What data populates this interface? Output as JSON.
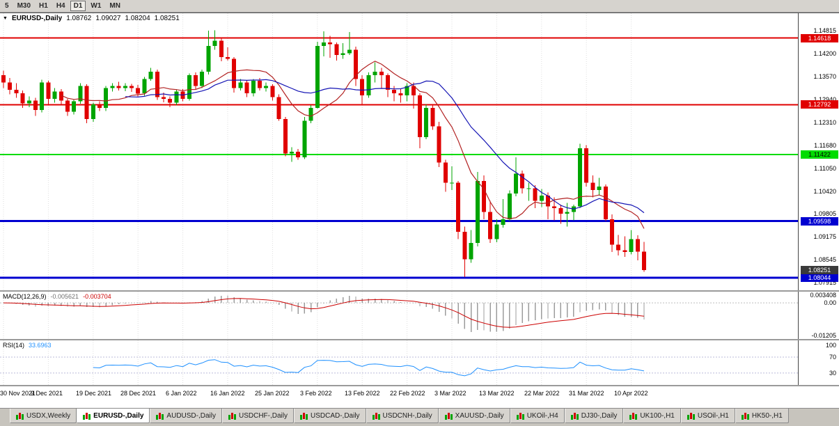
{
  "toolbar": {
    "timeframes": [
      {
        "label": "5",
        "active": false
      },
      {
        "label": "M30",
        "active": false
      },
      {
        "label": "H1",
        "active": false
      },
      {
        "label": "H4",
        "active": false
      },
      {
        "label": "D1",
        "active": true
      },
      {
        "label": "W1",
        "active": false
      },
      {
        "label": "MN",
        "active": false
      }
    ]
  },
  "chart": {
    "header": {
      "collapse_icon": "▼",
      "symbol": "EURUSD-,Daily",
      "open": "1.08762",
      "high": "1.09027",
      "low": "1.08204",
      "close": "1.08251"
    }
  },
  "chart_data": {
    "type": "candlestick",
    "symbol": "EURUSD-",
    "timeframe": "Daily",
    "price_range": {
      "top": 1.153,
      "bottom": 1.077
    },
    "colors": {
      "bull": "#00A400",
      "bear": "#E00000",
      "background": "#FFFFFF",
      "grid": "#DEDEDE"
    },
    "price_axis_ticks": [
      "1.14815",
      "1.14200",
      "1.13570",
      "1.12940",
      "1.12310",
      "1.11680",
      "1.11050",
      "1.10420",
      "1.09805",
      "1.09175",
      "1.08545",
      "1.07915"
    ],
    "hlines": [
      {
        "price": 1.14618,
        "label": "1.14618",
        "color": "#E00000",
        "width": 2,
        "text_color": "#FFFFFF"
      },
      {
        "price": 1.12792,
        "label": "1.12792",
        "color": "#E00000",
        "width": 2,
        "text_color": "#FFFFFF"
      },
      {
        "price": 1.11422,
        "label": "1.11422",
        "color": "#00DC00",
        "width": 2,
        "text_color": "#000000"
      },
      {
        "price": 1.09598,
        "label": "1.09598",
        "color": "#0000D0",
        "width": 3,
        "text_color": "#FFFFFF"
      },
      {
        "price": 1.08044,
        "label": "1.08044",
        "color": "#0000D0",
        "width": 3,
        "text_color": "#FFFFFF"
      }
    ],
    "current_price": {
      "value": 1.08251,
      "label": "1.08251",
      "box_color": "#3A3A3A",
      "text_color": "#FFFFFF"
    },
    "moving_averages": [
      {
        "period": 10,
        "type": "sma",
        "color": "#B22222"
      },
      {
        "period": 20,
        "type": "sma",
        "color": "#1414B4"
      }
    ],
    "x_axis": {
      "labels": [
        {
          "text": "30 Nov 2021",
          "i": 0
        },
        {
          "text": "9 Dec 2021",
          "i": 7
        },
        {
          "text": "19 Dec 2021",
          "i": 14
        },
        {
          "text": "28 Dec 2021",
          "i": 21
        },
        {
          "text": "6 Jan 2022",
          "i": 28
        },
        {
          "text": "16 Jan 2022",
          "i": 35
        },
        {
          "text": "25 Jan 2022",
          "i": 42
        },
        {
          "text": "3 Feb 2022",
          "i": 49
        },
        {
          "text": "13 Feb 2022",
          "i": 56
        },
        {
          "text": "22 Feb 2022",
          "i": 63
        },
        {
          "text": "3 Mar 2022",
          "i": 70
        },
        {
          "text": "13 Mar 2022",
          "i": 77
        },
        {
          "text": "22 Mar 2022",
          "i": 84
        },
        {
          "text": "31 Mar 2022",
          "i": 91
        },
        {
          "text": "10 Apr 2022",
          "i": 98
        }
      ]
    },
    "ohlc": [
      [
        1.136,
        1.1372,
        1.1325,
        1.134
      ],
      [
        1.134,
        1.1352,
        1.1308,
        1.132
      ],
      [
        1.132,
        1.1338,
        1.1298,
        1.131
      ],
      [
        1.131,
        1.1318,
        1.127,
        1.1283
      ],
      [
        1.1283,
        1.1302,
        1.1272,
        1.129
      ],
      [
        1.129,
        1.1298,
        1.1248,
        1.1265
      ],
      [
        1.1265,
        1.1348,
        1.1258,
        1.134
      ],
      [
        1.134,
        1.1345,
        1.1278,
        1.1295
      ],
      [
        1.1295,
        1.1325,
        1.1285,
        1.1315
      ],
      [
        1.1315,
        1.1322,
        1.1278,
        1.129
      ],
      [
        1.129,
        1.1295,
        1.1248,
        1.126
      ],
      [
        1.126,
        1.1292,
        1.1252,
        1.1288
      ],
      [
        1.1288,
        1.1338,
        1.1282,
        1.133
      ],
      [
        1.133,
        1.1335,
        1.1228,
        1.124
      ],
      [
        1.124,
        1.1285,
        1.1232,
        1.128
      ],
      [
        1.128,
        1.1288,
        1.1262,
        1.127
      ],
      [
        1.127,
        1.133,
        1.1262,
        1.1325
      ],
      [
        1.1325,
        1.1338,
        1.1315,
        1.133
      ],
      [
        1.133,
        1.1342,
        1.1318,
        1.1325
      ],
      [
        1.1325,
        1.1338,
        1.1316,
        1.133
      ],
      [
        1.133,
        1.1336,
        1.1314,
        1.1325
      ],
      [
        1.1325,
        1.1333,
        1.1302,
        1.131
      ],
      [
        1.131,
        1.1355,
        1.1304,
        1.135
      ],
      [
        1.135,
        1.138,
        1.1345,
        1.137
      ],
      [
        1.137,
        1.1375,
        1.1292,
        1.13
      ],
      [
        1.13,
        1.1312,
        1.1286,
        1.1295
      ],
      [
        1.1295,
        1.1302,
        1.1272,
        1.1285
      ],
      [
        1.1285,
        1.132,
        1.1278,
        1.1315
      ],
      [
        1.1315,
        1.1322,
        1.1288,
        1.1295
      ],
      [
        1.1295,
        1.1365,
        1.129,
        1.136
      ],
      [
        1.136,
        1.1368,
        1.1322,
        1.133
      ],
      [
        1.133,
        1.1375,
        1.1325,
        1.137
      ],
      [
        1.137,
        1.1482,
        1.1362,
        1.144
      ],
      [
        1.144,
        1.1483,
        1.143,
        1.1455
      ],
      [
        1.1455,
        1.146,
        1.1398,
        1.141
      ],
      [
        1.141,
        1.1436,
        1.14,
        1.1405
      ],
      [
        1.1405,
        1.141,
        1.1312,
        1.1325
      ],
      [
        1.1325,
        1.135,
        1.1318,
        1.134
      ],
      [
        1.134,
        1.1346,
        1.13,
        1.131
      ],
      [
        1.131,
        1.135,
        1.1302,
        1.1345
      ],
      [
        1.1345,
        1.1352,
        1.1318,
        1.1325
      ],
      [
        1.1325,
        1.134,
        1.1315,
        1.133
      ],
      [
        1.133,
        1.1335,
        1.129,
        1.13
      ],
      [
        1.13,
        1.1308,
        1.1235,
        1.124
      ],
      [
        1.124,
        1.1245,
        1.1138,
        1.1145
      ],
      [
        1.1145,
        1.1162,
        1.1122,
        1.115
      ],
      [
        1.115,
        1.1158,
        1.1128,
        1.1135
      ],
      [
        1.1135,
        1.1245,
        1.113,
        1.1235
      ],
      [
        1.1235,
        1.1278,
        1.1228,
        1.127
      ],
      [
        1.127,
        1.1452,
        1.1268,
        1.144
      ],
      [
        1.144,
        1.148,
        1.1412,
        1.145
      ],
      [
        1.145,
        1.1468,
        1.1408,
        1.1445
      ],
      [
        1.1445,
        1.145,
        1.14,
        1.1415
      ],
      [
        1.1415,
        1.1448,
        1.1405,
        1.142
      ],
      [
        1.142,
        1.1478,
        1.1415,
        1.143
      ],
      [
        1.143,
        1.1438,
        1.133,
        1.135
      ],
      [
        1.135,
        1.136,
        1.128,
        1.1305
      ],
      [
        1.1305,
        1.1368,
        1.1298,
        1.136
      ],
      [
        1.136,
        1.1395,
        1.134,
        1.137
      ],
      [
        1.137,
        1.138,
        1.1324,
        1.136
      ],
      [
        1.136,
        1.1365,
        1.13,
        1.132
      ],
      [
        1.132,
        1.133,
        1.1288,
        1.131
      ],
      [
        1.131,
        1.1322,
        1.1285,
        1.1305
      ],
      [
        1.1305,
        1.1338,
        1.1288,
        1.133
      ],
      [
        1.133,
        1.134,
        1.1268,
        1.1305
      ],
      [
        1.1305,
        1.131,
        1.116,
        1.119
      ],
      [
        1.119,
        1.128,
        1.1184,
        1.127
      ],
      [
        1.127,
        1.1278,
        1.121,
        1.122
      ],
      [
        1.122,
        1.1232,
        1.1108,
        1.112
      ],
      [
        1.112,
        1.1128,
        1.104,
        1.1065
      ],
      [
        1.1065,
        1.111,
        1.1045,
        1.1065
      ],
      [
        1.1065,
        1.107,
        1.091,
        1.093
      ],
      [
        1.093,
        1.0945,
        1.0806,
        1.0855
      ],
      [
        1.0855,
        1.0935,
        1.0845,
        1.09
      ],
      [
        1.09,
        1.1095,
        1.089,
        1.107
      ],
      [
        1.107,
        1.1085,
        1.0965,
        1.0985
      ],
      [
        1.0985,
        1.1015,
        1.09,
        1.091
      ],
      [
        1.091,
        1.0965,
        1.0902,
        1.095
      ],
      [
        1.095,
        1.102,
        1.0942,
        1.0965
      ],
      [
        1.0965,
        1.1044,
        1.096,
        1.1035
      ],
      [
        1.1035,
        1.1135,
        1.1028,
        1.109
      ],
      [
        1.109,
        1.1098,
        1.1035,
        1.105
      ],
      [
        1.105,
        1.1065,
        1.1015,
        1.105
      ],
      [
        1.105,
        1.1058,
        1.0995,
        1.1015
      ],
      [
        1.1015,
        1.1048,
        1.0998,
        1.103
      ],
      [
        1.103,
        1.1038,
        1.0965,
        1.1
      ],
      [
        1.1,
        1.1025,
        1.0962,
        1.0995
      ],
      [
        1.0995,
        1.1005,
        1.0952,
        1.098
      ],
      [
        1.098,
        1.101,
        1.0945,
        1.0985
      ],
      [
        1.0985,
        1.1005,
        1.0962,
        1.1
      ],
      [
        1.1,
        1.1172,
        1.0995,
        1.116
      ],
      [
        1.116,
        1.1168,
        1.1055,
        1.1065
      ],
      [
        1.1065,
        1.1085,
        1.1025,
        1.1045
      ],
      [
        1.1045,
        1.1078,
        1.103,
        1.1055
      ],
      [
        1.1055,
        1.106,
        1.096,
        1.0965
      ],
      [
        1.0965,
        1.0978,
        1.0875,
        1.0895
      ],
      [
        1.0895,
        1.0922,
        1.0865,
        1.088
      ],
      [
        1.088,
        1.0918,
        1.0862,
        1.0875
      ],
      [
        1.0875,
        1.0935,
        1.0868,
        1.091
      ],
      [
        1.091,
        1.0921,
        1.0852,
        1.0876
      ],
      [
        1.08762,
        1.09027,
        1.08204,
        1.08251
      ]
    ],
    "indicators": {
      "macd": {
        "label": "MACD(12,26,9)",
        "values_text": [
          "-0.005621",
          "-0.003704"
        ],
        "params": [
          12,
          26,
          9
        ],
        "axis_ticks": [
          "0.003408",
          "0.00",
          "-0.01205"
        ],
        "range": {
          "max": 0.003408,
          "min": -0.01205
        },
        "histogram_color": "#9C9C9C",
        "signal_color": "#CC0000"
      },
      "rsi": {
        "label": "RSI(14)",
        "value_text": "33.6963",
        "period": 14,
        "axis_ticks": [
          "100",
          "70",
          "30"
        ],
        "levels": [
          70,
          30
        ],
        "range": {
          "max": 112,
          "min": 0
        },
        "line_color": "#1E90FF"
      }
    }
  },
  "tabs": {
    "items": [
      {
        "label": "USDX,Weekly",
        "active": false
      },
      {
        "label": "EURUSD-,Daily",
        "active": true
      },
      {
        "label": "AUDUSD-,Daily",
        "active": false
      },
      {
        "label": "USDCHF-,Daily",
        "active": false
      },
      {
        "label": "USDCAD-,Daily",
        "active": false
      },
      {
        "label": "USDCNH-,Daily",
        "active": false
      },
      {
        "label": "XAUUSD-,Daily",
        "active": false
      },
      {
        "label": "UKOil-,H4",
        "active": false
      },
      {
        "label": "DJ30-,Daily",
        "active": false
      },
      {
        "label": "UK100-,H1",
        "active": false
      },
      {
        "label": "USOil-,H1",
        "active": false
      },
      {
        "label": "HK50-,H1",
        "active": false
      }
    ]
  }
}
